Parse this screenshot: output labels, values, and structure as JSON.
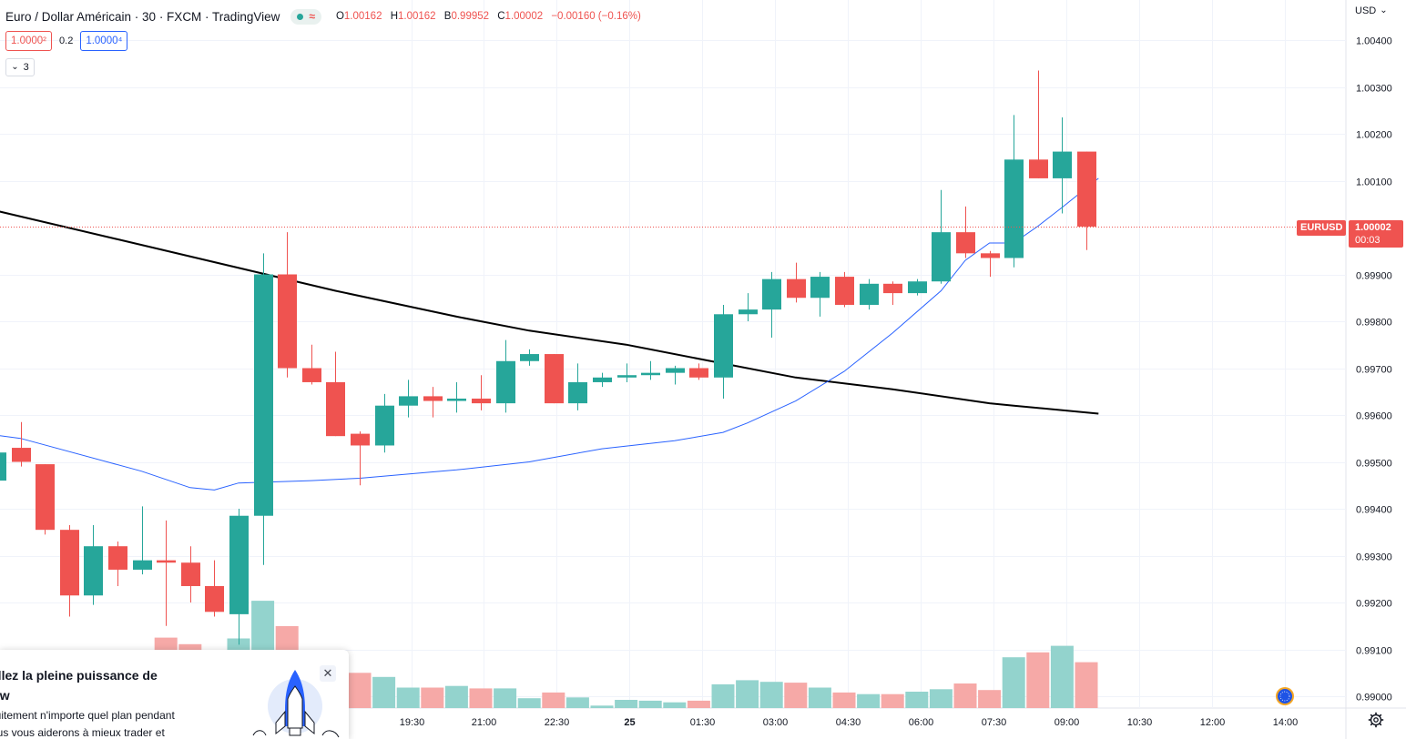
{
  "legend": {
    "symbol": "Euro / Dollar Américain · 30 · FXCM · TradingView",
    "status_wave": "≈",
    "ohlc": {
      "o_label": "O",
      "o": "1.00162",
      "h_label": "H",
      "h": "1.00162",
      "b_label": "B",
      "b": "0.99952",
      "c_label": "C",
      "c": "1.00002",
      "change": "−0.00160 (−0.16%)"
    }
  },
  "quotes": {
    "sell": "1.0000²",
    "spread": "0.2",
    "buy": "1.0000⁴"
  },
  "indicators_count": "3",
  "currency": "USD",
  "last_price": {
    "symbol": "EURUSD",
    "price": "1.00002",
    "countdown": "00:03",
    "value": 1.00002
  },
  "promo": {
    "title": "errouillez la pleine puissance de",
    "title2": "ingView",
    "text1": "ez gratuitement n'importe quel plan pendant",
    "text2": "urs. Nous vous aiderons à mieux trader et"
  },
  "colors": {
    "up": "#26a69a",
    "down": "#ef5350",
    "up_volume": "#93d3cd",
    "down_volume": "#f6a9a7",
    "ma_slow": "#000000",
    "ma_fast": "#2962ff",
    "grid": "#f0f3fa"
  },
  "icons": [
    "chevron-down-icon",
    "gear-icon",
    "globe-icon",
    "close-icon",
    "rocket-icon"
  ],
  "chart_data": {
    "type": "candlestick",
    "interval_minutes": 30,
    "y_ticks": [
      "1.00400",
      "1.00300",
      "1.00200",
      "1.00100",
      "0.99900",
      "0.99800",
      "0.99700",
      "0.99600",
      "0.99500",
      "0.99400",
      "0.99300",
      "0.99200",
      "0.99100",
      "0.99000"
    ],
    "ylim": [
      0.98975,
      1.00475
    ],
    "x_ticks": [
      "19:30",
      "21:00",
      "22:30",
      "25",
      "01:30",
      "03:00",
      "04:30",
      "06:00",
      "07:30",
      "09:00",
      "10:30",
      "12:00",
      "14:00"
    ],
    "candles": [
      {
        "o": 0.9946,
        "h": 0.9952,
        "l": 0.9945,
        "c": 0.9952
      },
      {
        "o": 0.9953,
        "h": 0.99585,
        "l": 0.9949,
        "c": 0.995
      },
      {
        "o": 0.99495,
        "h": 0.99495,
        "l": 0.99345,
        "c": 0.99355
      },
      {
        "o": 0.99355,
        "h": 0.99365,
        "l": 0.9917,
        "c": 0.99215
      },
      {
        "o": 0.99215,
        "h": 0.99365,
        "l": 0.99195,
        "c": 0.9932
      },
      {
        "o": 0.9932,
        "h": 0.9933,
        "l": 0.99235,
        "c": 0.9927
      },
      {
        "o": 0.9927,
        "h": 0.99405,
        "l": 0.9926,
        "c": 0.9929
      },
      {
        "o": 0.9929,
        "h": 0.99375,
        "l": 0.9915,
        "c": 0.99285
      },
      {
        "o": 0.99285,
        "h": 0.9932,
        "l": 0.992,
        "c": 0.99235
      },
      {
        "o": 0.99235,
        "h": 0.9929,
        "l": 0.9917,
        "c": 0.9918
      },
      {
        "o": 0.99175,
        "h": 0.994,
        "l": 0.9911,
        "c": 0.99385
      },
      {
        "o": 0.99385,
        "h": 0.99945,
        "l": 0.9928,
        "c": 0.999
      },
      {
        "o": 0.999,
        "h": 0.9999,
        "l": 0.9968,
        "c": 0.997
      },
      {
        "o": 0.997,
        "h": 0.9975,
        "l": 0.99665,
        "c": 0.9967
      },
      {
        "o": 0.9967,
        "h": 0.99735,
        "l": 0.99555,
        "c": 0.99555
      },
      {
        "o": 0.9956,
        "h": 0.99565,
        "l": 0.9945,
        "c": 0.99535
      },
      {
        "o": 0.99535,
        "h": 0.99645,
        "l": 0.9952,
        "c": 0.9962
      },
      {
        "o": 0.9962,
        "h": 0.99675,
        "l": 0.99595,
        "c": 0.9964
      },
      {
        "o": 0.9964,
        "h": 0.9966,
        "l": 0.99595,
        "c": 0.9963
      },
      {
        "o": 0.9963,
        "h": 0.9967,
        "l": 0.99605,
        "c": 0.99635
      },
      {
        "o": 0.99635,
        "h": 0.99685,
        "l": 0.9961,
        "c": 0.99625
      },
      {
        "o": 0.99625,
        "h": 0.9976,
        "l": 0.99605,
        "c": 0.99715
      },
      {
        "o": 0.99715,
        "h": 0.9974,
        "l": 0.99705,
        "c": 0.9973
      },
      {
        "o": 0.9973,
        "h": 0.9973,
        "l": 0.99625,
        "c": 0.99625
      },
      {
        "o": 0.99625,
        "h": 0.9971,
        "l": 0.9961,
        "c": 0.9967
      },
      {
        "o": 0.9967,
        "h": 0.9969,
        "l": 0.9966,
        "c": 0.9968
      },
      {
        "o": 0.9968,
        "h": 0.9971,
        "l": 0.9967,
        "c": 0.99685
      },
      {
        "o": 0.99685,
        "h": 0.99715,
        "l": 0.99675,
        "c": 0.9969
      },
      {
        "o": 0.9969,
        "h": 0.99705,
        "l": 0.99665,
        "c": 0.997
      },
      {
        "o": 0.997,
        "h": 0.9971,
        "l": 0.99675,
        "c": 0.9968
      },
      {
        "o": 0.9968,
        "h": 0.99835,
        "l": 0.99635,
        "c": 0.99815
      },
      {
        "o": 0.99815,
        "h": 0.9986,
        "l": 0.998,
        "c": 0.99825
      },
      {
        "o": 0.99825,
        "h": 0.99905,
        "l": 0.99765,
        "c": 0.9989
      },
      {
        "o": 0.9989,
        "h": 0.99925,
        "l": 0.9984,
        "c": 0.9985
      },
      {
        "o": 0.9985,
        "h": 0.99905,
        "l": 0.9981,
        "c": 0.99895
      },
      {
        "o": 0.99895,
        "h": 0.99905,
        "l": 0.9983,
        "c": 0.99835
      },
      {
        "o": 0.99835,
        "h": 0.9989,
        "l": 0.99825,
        "c": 0.9988
      },
      {
        "o": 0.9988,
        "h": 0.99885,
        "l": 0.99835,
        "c": 0.9986
      },
      {
        "o": 0.9986,
        "h": 0.9989,
        "l": 0.99855,
        "c": 0.99885
      },
      {
        "o": 0.99885,
        "h": 1.0008,
        "l": 0.9988,
        "c": 0.9999
      },
      {
        "o": 0.9999,
        "h": 1.00045,
        "l": 0.99935,
        "c": 0.99945
      },
      {
        "o": 0.99945,
        "h": 0.9995,
        "l": 0.99895,
        "c": 0.99935
      },
      {
        "o": 0.99935,
        "h": 1.0024,
        "l": 0.99915,
        "c": 1.00145
      },
      {
        "o": 1.00145,
        "h": 1.00335,
        "l": 1.00105,
        "c": 1.00105
      },
      {
        "o": 1.00105,
        "h": 1.00235,
        "l": 1.0003,
        "c": 1.00162
      },
      {
        "o": 1.00162,
        "h": 1.00162,
        "l": 0.99952,
        "c": 1.00002
      }
    ],
    "volume": [
      0.9,
      1.0,
      0.7,
      2.5,
      2.5,
      3.2,
      4.9,
      8.6,
      7.8,
      6.7,
      8.5,
      13.1,
      10.0,
      5.0,
      4.5,
      4.3,
      3.8,
      2.5,
      2.5,
      2.7,
      2.4,
      2.4,
      1.2,
      1.9,
      1.3,
      0.3,
      1.0,
      0.9,
      0.7,
      0.9,
      2.9,
      3.4,
      3.2,
      3.1,
      2.5,
      1.9,
      1.7,
      1.7,
      2.0,
      2.3,
      3.0,
      2.2,
      6.2,
      6.8,
      7.6,
      5.6
    ],
    "ma_slow": [
      [
        -10,
        1.0019
      ],
      [
        -7,
        1.0014
      ],
      [
        -2,
        1.0006
      ],
      [
        5,
        0.99975
      ],
      [
        14,
        0.99865
      ],
      [
        19,
        0.9981
      ],
      [
        22,
        0.9978
      ],
      [
        26,
        0.9975
      ],
      [
        30,
        0.9971
      ],
      [
        33,
        0.9968
      ],
      [
        37,
        0.99655
      ],
      [
        41,
        0.99625
      ],
      [
        42,
        0.9962
      ],
      [
        45.5,
        0.99603
      ]
    ],
    "ma_fast": [
      [
        -2,
        0.9957
      ],
      [
        1,
        0.9955
      ],
      [
        6,
        0.9948
      ],
      [
        8,
        0.99445
      ],
      [
        9,
        0.9944
      ],
      [
        10,
        0.99455
      ],
      [
        13,
        0.9946
      ],
      [
        15,
        0.99465
      ],
      [
        19,
        0.99483
      ],
      [
        22,
        0.995
      ],
      [
        25,
        0.99528
      ],
      [
        28,
        0.99545
      ],
      [
        30,
        0.99563
      ],
      [
        31,
        0.99583
      ],
      [
        33,
        0.9963
      ],
      [
        35,
        0.99693
      ],
      [
        37,
        0.99775
      ],
      [
        39,
        0.99865
      ],
      [
        40,
        0.9993
      ],
      [
        41,
        0.99967
      ],
      [
        42,
        0.99967
      ],
      [
        43,
        1.00003
      ],
      [
        44,
        1.00043
      ],
      [
        45.5,
        1.00105
      ]
    ]
  }
}
